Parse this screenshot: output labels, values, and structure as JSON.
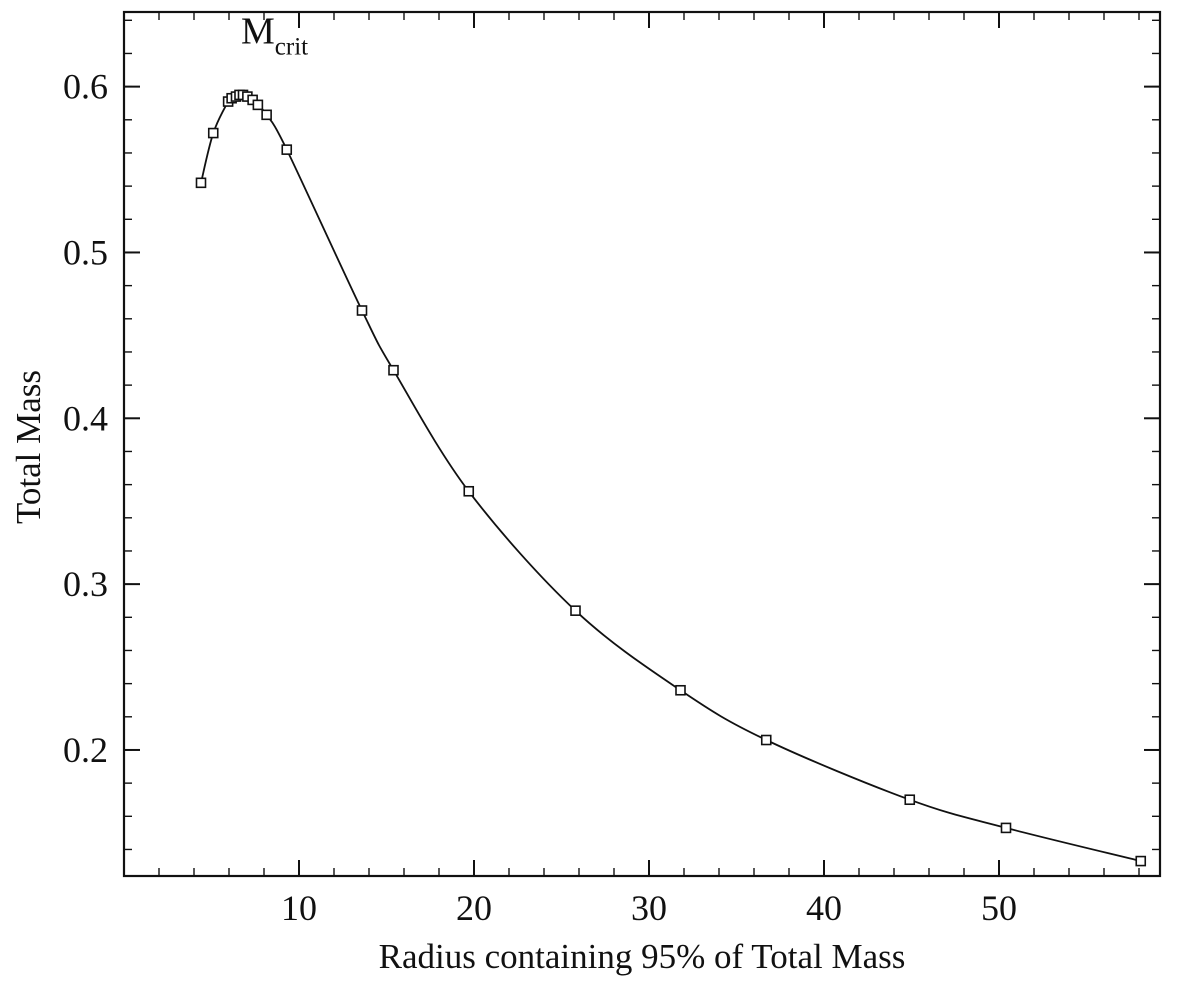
{
  "chart_data": {
    "type": "line",
    "title": "",
    "xlabel": "Radius containing 95% of Total Mass",
    "ylabel": "Total Mass",
    "xlim": [
      0,
      59.2
    ],
    "ylim": [
      0.124,
      0.645
    ],
    "grid": false,
    "xticks": [
      10,
      20,
      30,
      40,
      50
    ],
    "xtick_labels": [
      "10",
      "20",
      "30",
      "40",
      "50"
    ],
    "yticks": [
      0.2,
      0.3,
      0.4,
      0.5,
      0.6
    ],
    "ytick_labels": [
      "0.2",
      "0.3",
      "0.4",
      "0.5",
      "0.6"
    ],
    "x_minor_step": 2,
    "y_minor_step": 0.02,
    "annotation": {
      "main": "M",
      "sub": "crit",
      "at": [
        7.2,
        0.603
      ]
    },
    "series": [
      {
        "name": "Total Mass vs radius",
        "marker": "square",
        "x": [
          4.4,
          5.1,
          5.95,
          6.15,
          6.4,
          6.6,
          6.8,
          7.05,
          7.35,
          7.65,
          8.15,
          9.3,
          13.6,
          15.4,
          19.7,
          25.8,
          31.8,
          36.7,
          44.9,
          50.4,
          58.1
        ],
        "y": [
          0.542,
          0.572,
          0.591,
          0.593,
          0.594,
          0.595,
          0.595,
          0.594,
          0.592,
          0.589,
          0.583,
          0.562,
          0.465,
          0.429,
          0.356,
          0.284,
          0.236,
          0.206,
          0.17,
          0.153,
          0.133
        ]
      }
    ]
  }
}
